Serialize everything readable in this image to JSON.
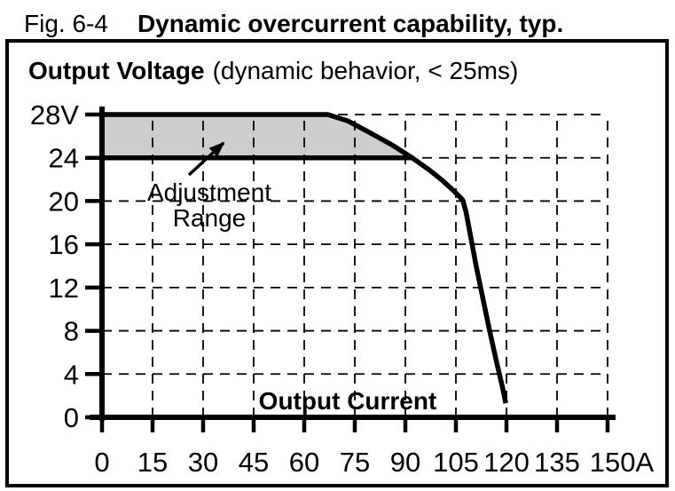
{
  "title": {
    "prefix": "Fig. 6-4",
    "bold": "Dynamic overcurrent capability, typ."
  },
  "chart_header": {
    "bold": "Output Voltage",
    "note": "(dynamic behavior, < 25ms)"
  },
  "colors": {
    "ink": "#000000",
    "background": "#ffffff",
    "region_fill": "#cdcdcd"
  },
  "chart_data": {
    "type": "line",
    "title": "Output Voltage (dynamic behavior, < 25ms)",
    "xlabel": "Output Current",
    "ylabel": "Output Voltage",
    "x_unit": "A",
    "y_unit": "V",
    "xlim": [
      0,
      150
    ],
    "ylim": [
      0,
      28
    ],
    "x_ticks": [
      0,
      15,
      30,
      45,
      60,
      75,
      90,
      105,
      120,
      135,
      150
    ],
    "x_tick_labels": [
      "0",
      "15",
      "30",
      "45",
      "60",
      "75",
      "90",
      "105",
      "120",
      "135",
      "150A"
    ],
    "y_ticks": [
      28,
      24,
      20,
      16,
      12,
      8,
      4,
      0
    ],
    "y_tick_labels": [
      "28V",
      "24",
      "20",
      "16",
      "12",
      "8",
      "4",
      "0"
    ],
    "grid": "dashed, vertical every 15 A and horizontal every 4 V",
    "legend": "none",
    "series": [
      {
        "name": "dynamic overcurrent capability curve",
        "color": "#000000",
        "style": "thick solid",
        "points": [
          [
            0,
            28
          ],
          [
            67,
            28
          ],
          [
            73,
            27.4
          ],
          [
            79,
            26.4
          ],
          [
            86,
            25.2
          ],
          [
            92,
            24
          ],
          [
            97,
            22.9
          ],
          [
            101,
            21.9
          ],
          [
            104.5,
            20.9
          ],
          [
            107,
            20.1
          ],
          [
            108,
            19
          ],
          [
            109.5,
            16.5
          ],
          [
            111,
            14
          ],
          [
            113,
            11
          ],
          [
            115,
            8
          ],
          [
            117,
            5.2
          ],
          [
            118.8,
            2.8
          ],
          [
            119.8,
            1.3
          ]
        ]
      },
      {
        "name": "lower adjustment limit 24 V line",
        "color": "#000000",
        "style": "thick solid",
        "points": [
          [
            0,
            24
          ],
          [
            92,
            24
          ]
        ]
      }
    ],
    "adjustment_region": {
      "description": "shaded band between 24 V line and capability curve",
      "x_end": 92,
      "y_bottom": 24,
      "label_line1": "Adjustment",
      "label_line2": "Range"
    }
  }
}
